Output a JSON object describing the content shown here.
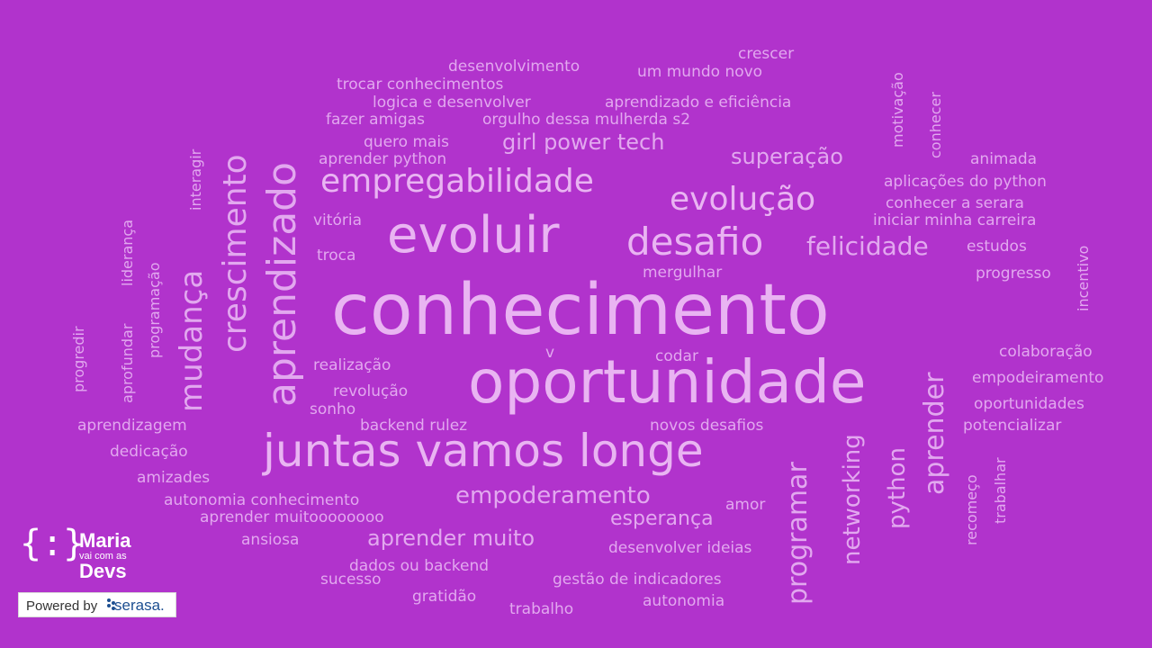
{
  "background_color": "#b133cc",
  "word_color": "#e2a8ef",
  "words": {
    "conhecimento": "conhecimento",
    "oportunidade": "oportunidade",
    "evoluir": "evoluir",
    "juntas_vamos_longe": "juntas vamos longe",
    "desafio": "desafio",
    "evolucao": "evolução",
    "empregabilidade": "empregabilidade",
    "felicidade": "felicidade",
    "empoderamento": "empoderamento",
    "aprender_muito": "aprender muito",
    "girl_power_tech": "girl power tech",
    "superacao": "superação",
    "esperanca": "esperança",
    "crescimento": "crescimento",
    "aprendizado": "aprendizado",
    "mudanca": "mudança",
    "programar": "programar",
    "aprender": "aprender",
    "networking": "networking",
    "python": "python",
    "desenvolvimento": "desenvolvimento",
    "crescer": "crescer",
    "um_mundo_novo": "um mundo novo",
    "trocar_conhecimentos": "trocar conhecimentos",
    "logica_e_desenvolver": "logica e desenvolver",
    "aprendizado_e_eficiencia": "aprendizado e eficiência",
    "fazer_amigas": "fazer amigas",
    "orgulho": "orgulho dessa mulherda s2",
    "quero_mais": "quero mais",
    "aprender_python": "aprender python",
    "animada": "animada",
    "aplicacoes_do_python": "aplicações do python",
    "conhecer_a_serara": "conhecer a serara",
    "iniciar_minha_carreira": "iniciar minha carreira",
    "estudos": "estudos",
    "progresso": "progresso",
    "vitoria": "vitória",
    "troca": "troca",
    "mergulhar": "mergulhar",
    "v": "v",
    "codar": "codar",
    "realizacao": "realização",
    "revolucao": "revolução",
    "sonho": "sonho",
    "backend_rulez": "backend rulez",
    "novos_desafios": "novos desafios",
    "colaboracao": "colaboração",
    "empodeiramento": "empodeiramento",
    "oportunidades": "oportunidades",
    "potencializar": "potencializar",
    "aprendizagem": "aprendizagem",
    "dedicacao": "dedicação",
    "amizades": "amizades",
    "autonomia_conhecimento": "autonomia conhecimento",
    "aprender_muitoooo": "aprender muitoooooooo",
    "amor": "amor",
    "ansiosa": "ansiosa",
    "desenvolver_ideias": "desenvolver ideias",
    "dados_ou_backend": "dados ou backend",
    "sucesso": "sucesso",
    "gestao_de_indicadores": "gestão de indicadores",
    "gratidao": "gratidão",
    "autonomia": "autonomia",
    "trabalho": "trabalho",
    "motivacao": "motivação",
    "conhecer": "conhecer",
    "interagir": "interagir",
    "lideranca": "liderança",
    "programacao": "programação",
    "progredir": "progredir",
    "aprofundar": "aprofundar",
    "incentivo": "incentivo",
    "recomeco": "recomeço",
    "trabalhar": "trabalhar"
  },
  "logo": {
    "mark": "{:}",
    "line1": "Maria",
    "line2": "vai com as",
    "line3": "Devs",
    "powered_by": "Powered by",
    "partner": "serasa."
  }
}
